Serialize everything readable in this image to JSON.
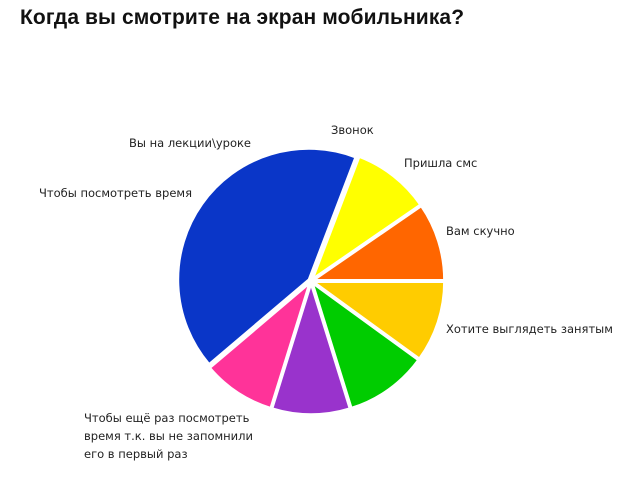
{
  "chart_data": {
    "type": "pie",
    "title": "Когда вы смотрите на экран мобильника?",
    "slices": [
      {
        "label": "Вам скучно",
        "value": 9.6,
        "color": "#ff6600"
      },
      {
        "label": "Хотите выглядеть занятым",
        "value": 9.6,
        "color": "#ffff00"
      },
      {
        "label": "Чтобы ещё раз посмотреть время т.к. вы не запомнили его в первый раз",
        "label_lines": [
          "Чтобы ещё раз посмотреть",
          "время т.к. вы не запомнили",
          "его в первый раз"
        ],
        "value": 42.0,
        "color": "#0a36c8"
      },
      {
        "label": "Чтобы посмотреть время",
        "value": 9.0,
        "color": "#ff3399"
      },
      {
        "label": "Вы на лекции\\уроке",
        "value": 9.6,
        "color": "#9933cc"
      },
      {
        "label": "Звонок",
        "value": 10.2,
        "color": "#00cc00"
      },
      {
        "label": "Пришла смс",
        "value": 10.0,
        "color": "#ffcc00"
      }
    ],
    "start_angle_deg": 0,
    "direction": "counterclockwise",
    "legend": "none"
  }
}
